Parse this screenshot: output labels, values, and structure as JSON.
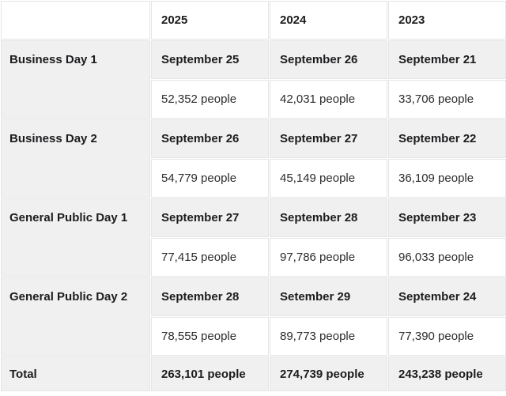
{
  "table": {
    "columns": [
      "",
      "2025",
      "2024",
      "2023"
    ],
    "rows": [
      {
        "label": "Business Day 1",
        "dates": [
          "September 25",
          "September 26",
          "September 21"
        ],
        "people": [
          "52,352 people",
          "42,031 people",
          "33,706 people"
        ]
      },
      {
        "label": "Business Day 2",
        "dates": [
          "September 26",
          "September 27",
          "September 22"
        ],
        "people": [
          "54,779 people",
          "45,149 people",
          "36,109 people"
        ]
      },
      {
        "label": "General Public Day 1",
        "dates": [
          "September 27",
          "September 28",
          "September 23"
        ],
        "people": [
          "77,415 people",
          "97,786 people",
          "96,033 people"
        ]
      },
      {
        "label": "General Public Day 2",
        "dates": [
          "September 28",
          "Setember 29",
          "September 24"
        ],
        "people": [
          "78,555 people",
          "89,773 people",
          "77,390 people"
        ]
      }
    ],
    "total": {
      "label": "Total",
      "values": [
        "263,101 people",
        "274,739 people",
        "243,238 people"
      ]
    }
  },
  "chart_data": {
    "type": "table",
    "title": "",
    "columns": [
      "",
      "2025",
      "2024",
      "2023"
    ],
    "row_groups": [
      {
        "name": "Business Day 1",
        "dates": [
          "September 25",
          "September 26",
          "September 21"
        ],
        "attendance": [
          52352,
          42031,
          33706
        ]
      },
      {
        "name": "Business Day 2",
        "dates": [
          "September 26",
          "September 27",
          "September 22"
        ],
        "attendance": [
          54779,
          45149,
          36109
        ]
      },
      {
        "name": "General Public Day 1",
        "dates": [
          "September 27",
          "September 28",
          "September 23"
        ],
        "attendance": [
          77415,
          97786,
          96033
        ]
      },
      {
        "name": "General Public Day 2",
        "dates": [
          "September 28",
          "Setember 29",
          "September 24"
        ],
        "attendance": [
          78555,
          89773,
          77390
        ]
      }
    ],
    "totals": {
      "name": "Total",
      "attendance": [
        263101,
        274739,
        243238
      ]
    },
    "units": "people"
  },
  "colors": {
    "cell_gray": "#f0f0f1",
    "cell_white": "#ffffff",
    "border": "#e4e5e7",
    "text_bold": "#1c1c1e",
    "text_regular": "#2c2c2e"
  }
}
